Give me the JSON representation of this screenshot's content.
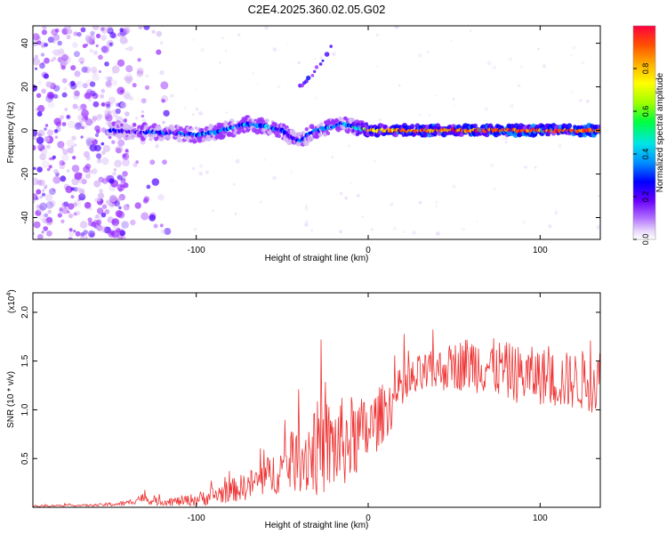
{
  "figure": {
    "title": "C2E4.2025.360.02.05.G02"
  },
  "chart_data": [
    {
      "type": "heatmap",
      "xlabel": "Height of straight line (km)",
      "ylabel": "Frequency (Hz)",
      "xlim": [
        -195,
        135
      ],
      "ylim": [
        -50,
        48
      ],
      "xticks": [
        -100,
        0,
        100
      ],
      "yticks": [
        -40,
        -20,
        0,
        20,
        40
      ],
      "grid": false,
      "colorbar": {
        "label": "Normalized spectral amplitude",
        "range": [
          0,
          1
        ],
        "ticks": [
          "0.0",
          "0.2",
          "0.4",
          "0.6",
          "0.8"
        ],
        "colors": [
          "#ffffff",
          "#d6b8f5",
          "#9b30ff",
          "#4b00ff",
          "#0000ff",
          "#0090ff",
          "#00e5e5",
          "#00ff40",
          "#a0ff00",
          "#ffff00",
          "#ffb000",
          "#ff5000",
          "#ff0040"
        ]
      },
      "ridge": {
        "x": [
          -195,
          -150,
          -120,
          -100,
          -90,
          -80,
          -70,
          -60,
          -50,
          -45,
          -40,
          -35,
          -30,
          -25,
          -20,
          -15,
          -10,
          0,
          20,
          50,
          80,
          110,
          135
        ],
        "freq": [
          0,
          0,
          -1,
          -2,
          -1,
          1,
          3,
          2,
          0,
          -3,
          -5,
          -2,
          0,
          1,
          2,
          3,
          2,
          0,
          0,
          0,
          0,
          0,
          0
        ],
        "amplitude": [
          0.15,
          0.3,
          0.35,
          0.4,
          0.42,
          0.45,
          0.45,
          0.42,
          0.38,
          0.3,
          0.35,
          0.4,
          0.42,
          0.45,
          0.45,
          0.4,
          0.45,
          0.8,
          0.95,
          0.95,
          0.95,
          0.95,
          0.95
        ]
      },
      "secondary_trace": {
        "x": [
          -42,
          -35,
          -20
        ],
        "freq": [
          18,
          23,
          40
        ]
      },
      "noise_region_x": [
        -195,
        -115
      ]
    },
    {
      "type": "line",
      "xlabel": "Height of straight line (km)",
      "ylabel": "SNR (10 * v/v)",
      "y_multiplier": "(x10",
      "y_multiplier_exp": "4",
      "y_multiplier_close": ")",
      "xlim": [
        -195,
        135
      ],
      "ylim": [
        0,
        2.2
      ],
      "xticks": [
        -100,
        0,
        100
      ],
      "yticks": [
        "0.5",
        "1.0",
        "1.5",
        "2.0"
      ],
      "series_color": "#ee3333",
      "series": [
        {
          "name": "SNR",
          "x": [
            -195,
            -180,
            -160,
            -140,
            -132,
            -125,
            -110,
            -100,
            -90,
            -80,
            -70,
            -60,
            -50,
            -40,
            -35,
            -30,
            -20,
            -10,
            0,
            10,
            20,
            30,
            40,
            50,
            60,
            70,
            80,
            90,
            100,
            110,
            120,
            135
          ],
          "mean": [
            0.01,
            0.02,
            0.02,
            0.04,
            0.1,
            0.06,
            0.06,
            0.08,
            0.12,
            0.17,
            0.22,
            0.3,
            0.4,
            0.5,
            0.56,
            0.6,
            0.62,
            0.7,
            0.78,
            1.0,
            1.2,
            1.35,
            1.4,
            1.45,
            1.48,
            1.45,
            1.4,
            1.35,
            1.35,
            1.3,
            1.3,
            1.3
          ],
          "spread": [
            0.01,
            0.01,
            0.01,
            0.03,
            0.05,
            0.04,
            0.05,
            0.07,
            0.1,
            0.12,
            0.15,
            0.2,
            0.25,
            0.35,
            0.45,
            0.5,
            0.5,
            0.45,
            0.35,
            0.3,
            0.25,
            0.22,
            0.22,
            0.25,
            0.3,
            0.3,
            0.3,
            0.3,
            0.3,
            0.3,
            0.3,
            0.35
          ]
        }
      ]
    }
  ]
}
